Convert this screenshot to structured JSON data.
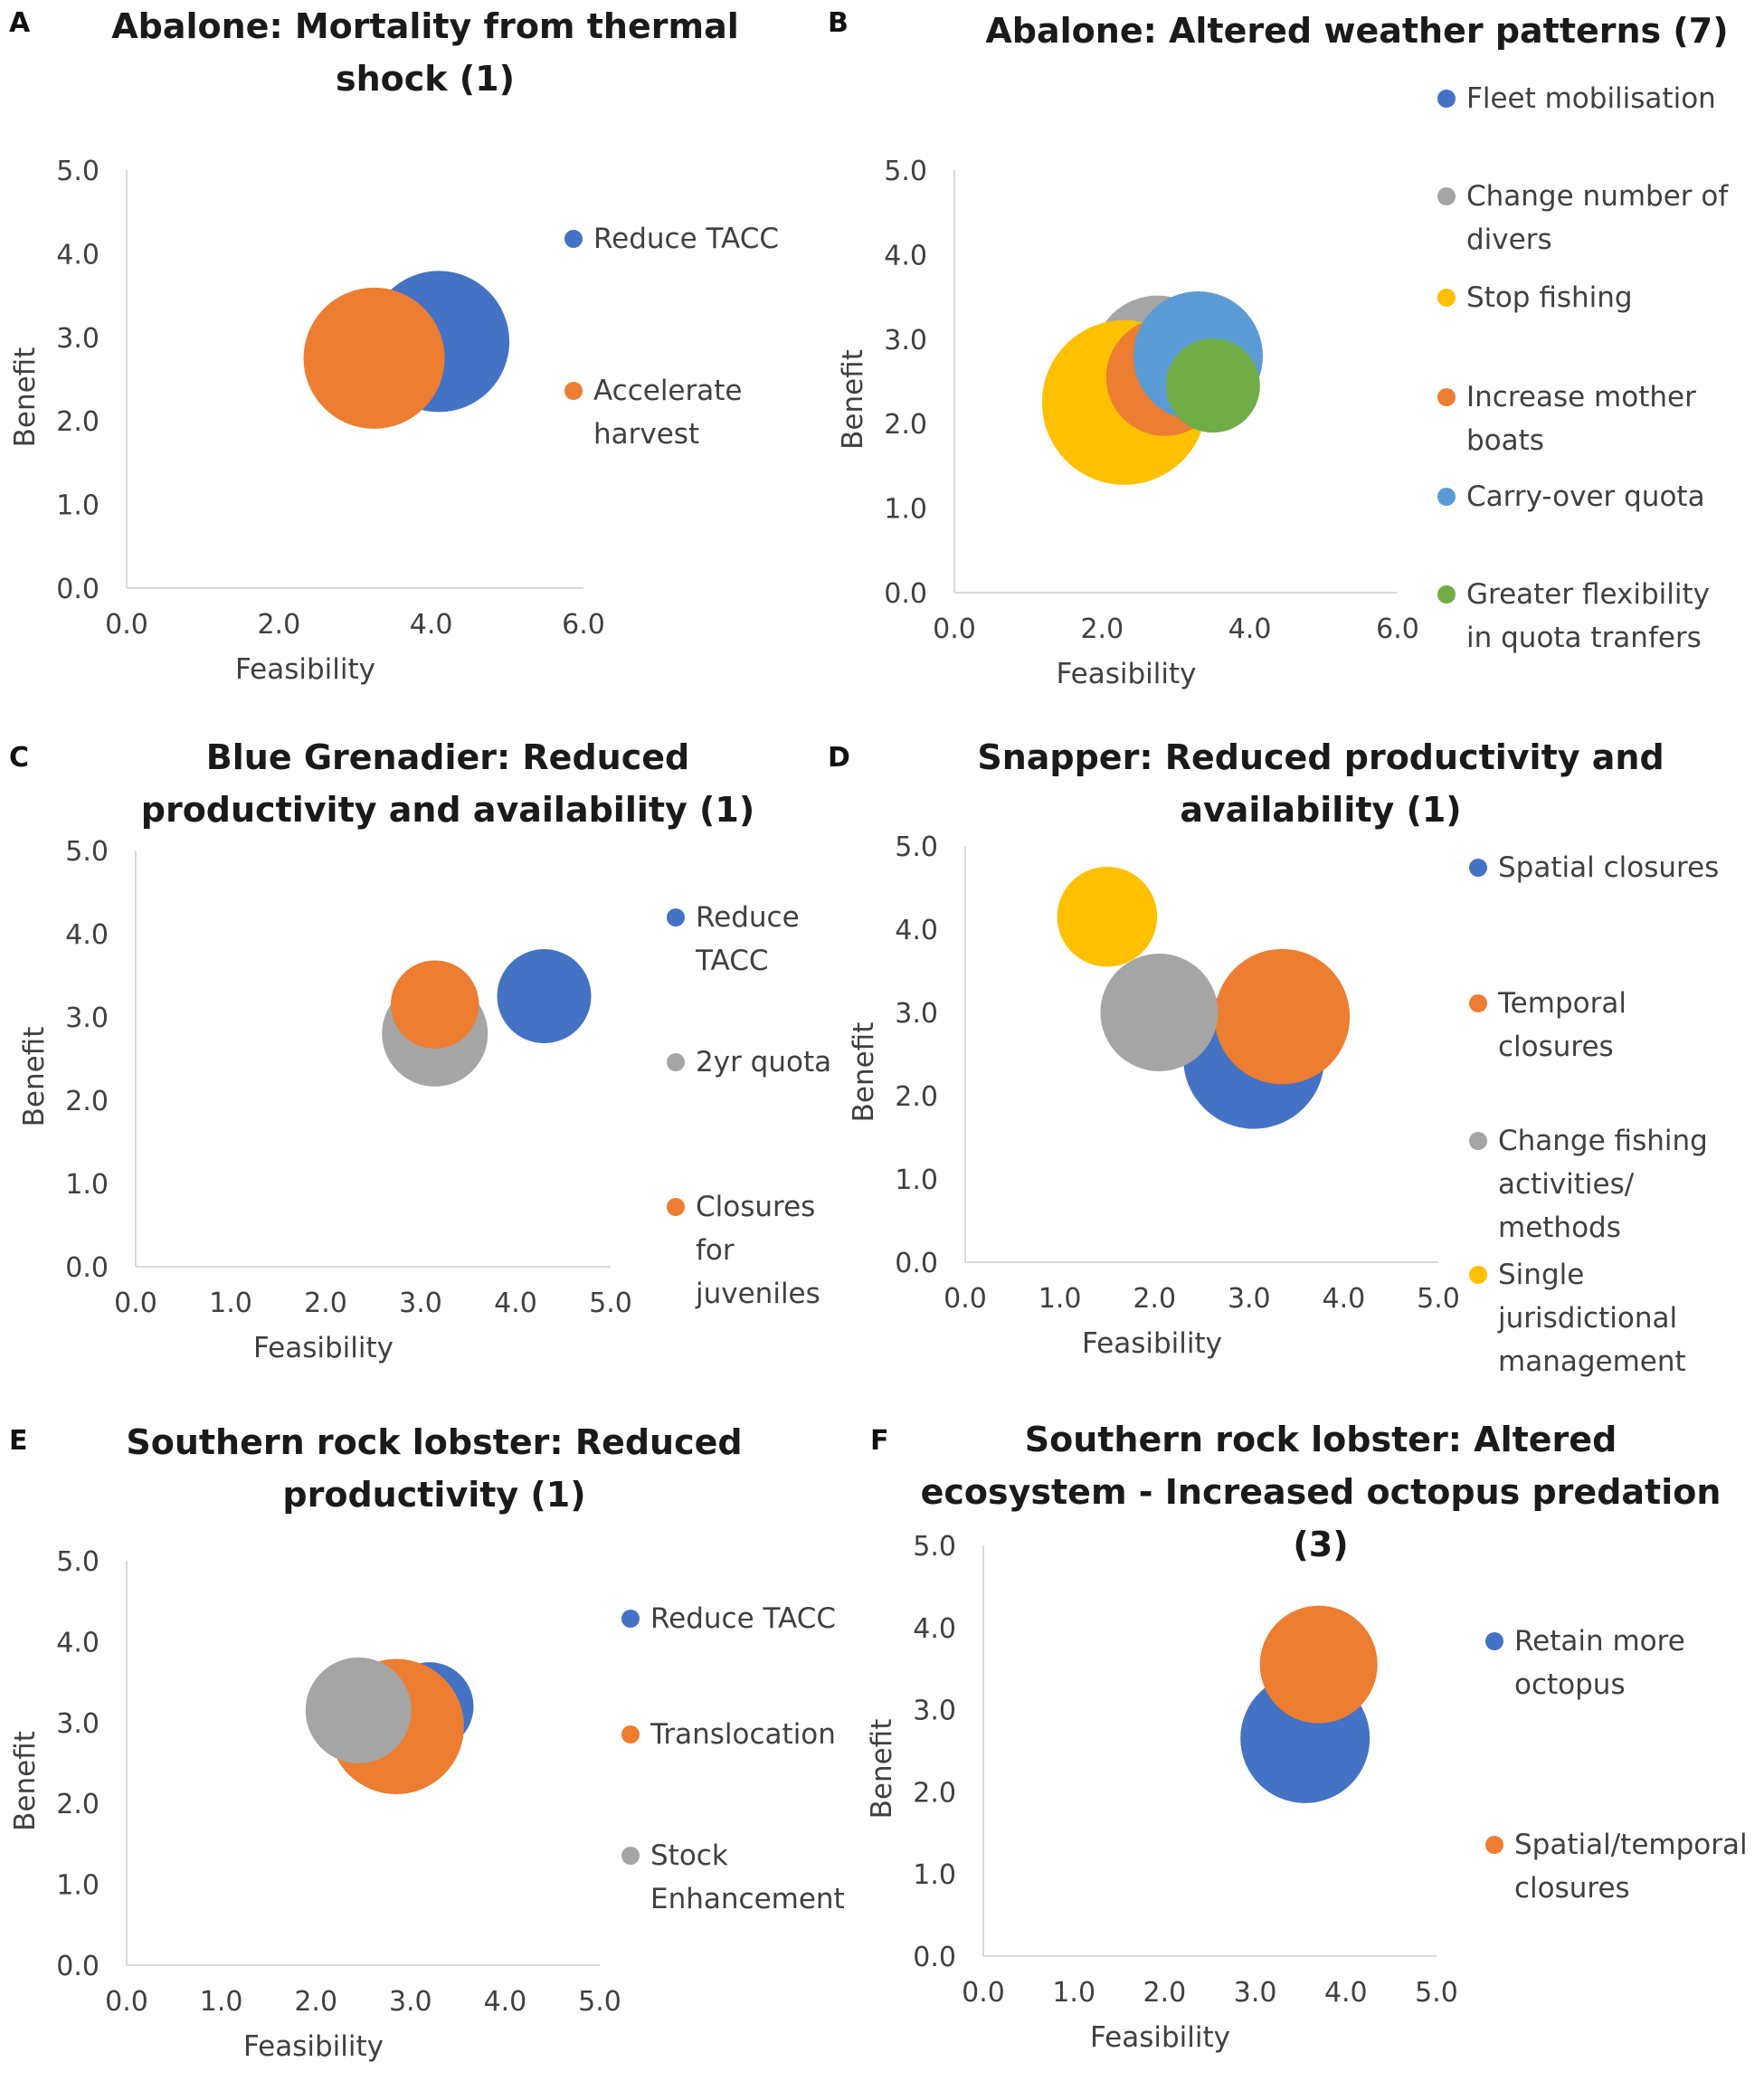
{
  "chart_data": [
    {
      "panel": "A",
      "type": "scatter",
      "title": "Abalone: Mortality from thermal shock (1)",
      "title_lines": [
        "Abalone: Mortality from thermal",
        "shock (1)"
      ],
      "xlabel": "Feasibility",
      "ylabel": "Benefit",
      "xlim": [
        0,
        6
      ],
      "ylim": [
        0,
        5
      ],
      "xticks": [
        "0.0",
        "2.0",
        "4.0",
        "6.0"
      ],
      "yticks": [
        "0.0",
        "1.0",
        "2.0",
        "3.0",
        "4.0",
        "5.0"
      ],
      "legend_position": "right",
      "series": [
        {
          "name": "Reduce TACC",
          "name_lines": [
            "Reduce TACC"
          ],
          "color": "#4472C4",
          "x": 4.1,
          "y": 2.95,
          "size": 1.2
        },
        {
          "name": "Accelerate harvest",
          "name_lines": [
            "Accelerate",
            "harvest"
          ],
          "color": "#ED7D31",
          "x": 3.25,
          "y": 2.75,
          "size": 1.2
        }
      ]
    },
    {
      "panel": "B",
      "type": "scatter",
      "title": "Abalone: Altered weather patterns (7)",
      "title_lines": [
        "Abalone: Altered weather patterns (7)"
      ],
      "xlabel": "Feasibility",
      "ylabel": "Benefit",
      "xlim": [
        0,
        6
      ],
      "ylim": [
        0,
        5
      ],
      "xticks": [
        "0.0",
        "2.0",
        "4.0",
        "6.0"
      ],
      "yticks": [
        "0.0",
        "1.0",
        "2.0",
        "3.0",
        "4.0",
        "5.0"
      ],
      "legend_position": "right",
      "series": [
        {
          "name": "Fleet mobilisation",
          "name_lines": [
            "Fleet mobilisation"
          ],
          "color": "#4472C4",
          "x": 3.6,
          "y": 2.8,
          "size": 0.7
        },
        {
          "name": "Change number of divers",
          "name_lines": [
            "Change number of",
            "divers"
          ],
          "color": "#A5A5A5",
          "x": 2.75,
          "y": 2.75,
          "size": 1.1
        },
        {
          "name": "Stop fishing",
          "name_lines": [
            "Stop fishing"
          ],
          "color": "#FFC000",
          "x": 2.3,
          "y": 2.25,
          "size": 1.4
        },
        {
          "name": "Increase mother boats",
          "name_lines": [
            "Increase mother",
            "boats"
          ],
          "color": "#ED7D31",
          "x": 2.85,
          "y": 2.55,
          "size": 1.0
        },
        {
          "name": "Carry-over quota",
          "name_lines": [
            "Carry-over quota"
          ],
          "color": "#5B9BD5",
          "x": 3.3,
          "y": 2.8,
          "size": 1.1
        },
        {
          "name": "Greater flexibility in quota tranfers",
          "name_lines": [
            "Greater flexibility",
            "in quota tranfers"
          ],
          "color": "#70AD47",
          "x": 3.5,
          "y": 2.45,
          "size": 0.8
        }
      ]
    },
    {
      "panel": "C",
      "type": "scatter",
      "title": "Blue Grenadier: Reduced productivity and availability (1)",
      "title_lines": [
        "Blue Grenadier: Reduced",
        "productivity and availability (1)"
      ],
      "xlabel": "Feasibility",
      "ylabel": "Benefit",
      "xlim": [
        0,
        5
      ],
      "ylim": [
        0,
        5
      ],
      "xticks": [
        "0.0",
        "1.0",
        "2.0",
        "3.0",
        "4.0",
        "5.0"
      ],
      "yticks": [
        "0.0",
        "1.0",
        "2.0",
        "3.0",
        "4.0",
        "5.0"
      ],
      "legend_position": "right",
      "series": [
        {
          "name": "Reduce TACC",
          "name_lines": [
            "Reduce",
            "TACC"
          ],
          "color": "#4472C4",
          "x": 4.3,
          "y": 3.25,
          "size": 0.8
        },
        {
          "name": "2yr quota",
          "name_lines": [
            "2yr quota"
          ],
          "color": "#A5A5A5",
          "x": 3.15,
          "y": 2.8,
          "size": 0.9
        },
        {
          "name": "Closures for juveniles",
          "name_lines": [
            "Closures",
            "for",
            "juveniles"
          ],
          "color": "#ED7D31",
          "x": 3.15,
          "y": 3.15,
          "size": 0.75
        }
      ]
    },
    {
      "panel": "D",
      "type": "scatter",
      "title": "Snapper: Reduced productivity and availability (1)",
      "title_lines": [
        "Snapper: Reduced productivity and",
        "availability (1)"
      ],
      "xlabel": "Feasibility",
      "ylabel": "Benefit",
      "xlim": [
        0,
        5
      ],
      "ylim": [
        0,
        5
      ],
      "xticks": [
        "0.0",
        "1.0",
        "2.0",
        "3.0",
        "4.0",
        "5.0"
      ],
      "yticks": [
        "0.0",
        "1.0",
        "2.0",
        "3.0",
        "4.0",
        "5.0"
      ],
      "legend_position": "right",
      "series": [
        {
          "name": "Spatial closures",
          "name_lines": [
            "Spatial closures"
          ],
          "color": "#4472C4",
          "x": 3.05,
          "y": 2.45,
          "size": 1.2
        },
        {
          "name": "Temporal closures",
          "name_lines": [
            "Temporal",
            "closures"
          ],
          "color": "#ED7D31",
          "x": 3.35,
          "y": 2.95,
          "size": 1.15
        },
        {
          "name": "Change fishing activities/ methods",
          "name_lines": [
            "Change fishing",
            "activities/",
            "methods"
          ],
          "color": "#A5A5A5",
          "x": 2.05,
          "y": 3.0,
          "size": 1.0
        },
        {
          "name": "Single jurisdictional management",
          "name_lines": [
            "Single",
            "jurisdictional",
            "management"
          ],
          "color": "#FFC000",
          "x": 1.5,
          "y": 4.15,
          "size": 0.85
        }
      ]
    },
    {
      "panel": "E",
      "type": "scatter",
      "title": "Southern rock lobster: Reduced productivity (1)",
      "title_lines": [
        "Southern rock lobster: Reduced",
        "productivity (1)"
      ],
      "xlabel": "Feasibility",
      "ylabel": "Benefit",
      "xlim": [
        0,
        5
      ],
      "ylim": [
        0,
        5
      ],
      "xticks": [
        "0.0",
        "1.0",
        "2.0",
        "3.0",
        "4.0",
        "5.0"
      ],
      "yticks": [
        "0.0",
        "1.0",
        "2.0",
        "3.0",
        "4.0",
        "5.0"
      ],
      "legend_position": "right",
      "series": [
        {
          "name": "Reduce TACC",
          "name_lines": [
            "Reduce TACC"
          ],
          "color": "#4472C4",
          "x": 3.2,
          "y": 3.2,
          "size": 0.75
        },
        {
          "name": "Translocation",
          "name_lines": [
            "Translocation"
          ],
          "color": "#ED7D31",
          "x": 2.85,
          "y": 2.95,
          "size": 1.15
        },
        {
          "name": "Stock Enhancement",
          "name_lines": [
            "Stock",
            "Enhancement"
          ],
          "color": "#A5A5A5",
          "x": 2.45,
          "y": 3.15,
          "size": 0.9
        }
      ]
    },
    {
      "panel": "F",
      "type": "scatter",
      "title": "Southern rock lobster: Altered ecosystem - Increased octopus predation (3)",
      "title_lines": [
        "Southern rock lobster: Altered",
        "ecosystem - Increased octopus predation",
        "(3)"
      ],
      "xlabel": "Feasibility",
      "ylabel": "Benefit",
      "xlim": [
        0,
        5
      ],
      "ylim": [
        0,
        5
      ],
      "xticks": [
        "0.0",
        "1.0",
        "2.0",
        "3.0",
        "4.0",
        "5.0"
      ],
      "yticks": [
        "0.0",
        "1.0",
        "2.0",
        "3.0",
        "4.0",
        "5.0"
      ],
      "legend_position": "right",
      "series": [
        {
          "name": "Retain more octopus",
          "name_lines": [
            "Retain more",
            "octopus"
          ],
          "color": "#4472C4",
          "x": 3.55,
          "y": 2.65,
          "size": 1.1
        },
        {
          "name": "Spatial/temporal closures",
          "name_lines": [
            "Spatial/temporal",
            "closures"
          ],
          "color": "#ED7D31",
          "x": 3.7,
          "y": 3.55,
          "size": 1.0
        }
      ]
    }
  ]
}
